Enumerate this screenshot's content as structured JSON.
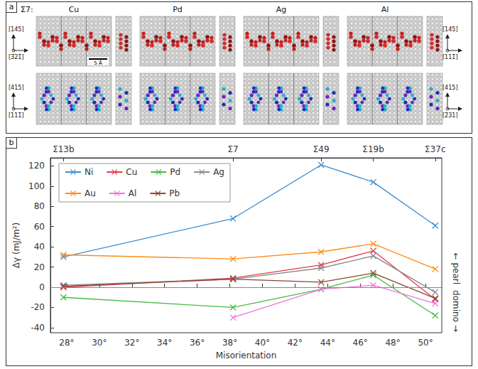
{
  "panel_labels": [
    "a",
    "b"
  ],
  "structures": {
    "title": "Σ7:",
    "elements": [
      "Cu",
      "Pd",
      "Ag",
      "Al"
    ],
    "scale_bar": "5 Å",
    "top_row_axes": {
      "left": {
        "up": "[145]",
        "right": "[3̄21̄]"
      },
      "right": {
        "up": "[145]",
        "right": "[111̄]"
      }
    },
    "bottom_row_axes": {
      "left": {
        "up": "[415]",
        "right": "[111̄]"
      },
      "right": {
        "up": "[415]",
        "right": "[2̄31]"
      }
    }
  },
  "chart_data": {
    "type": "line",
    "x_label": "Misorientation",
    "y_label": "Δγ (mJ/m²)",
    "x": [
      27.8,
      38.2,
      43.6,
      46.8,
      50.6
    ],
    "series": [
      {
        "name": "Ni",
        "color": "#3c8dd0",
        "values": [
          30,
          68,
          121,
          104,
          61
        ]
      },
      {
        "name": "Cu",
        "color": "#e03c4c",
        "values": [
          0,
          9,
          22,
          36,
          -12
        ]
      },
      {
        "name": "Pd",
        "color": "#44bb44",
        "values": [
          -10,
          -20,
          -2,
          12,
          -28
        ]
      },
      {
        "name": "Ag",
        "color": "#8a8a8a",
        "values": [
          2,
          8,
          19,
          31,
          -5
        ]
      },
      {
        "name": "Au",
        "color": "#ff8c1a",
        "values": [
          32,
          28,
          35,
          43,
          18
        ]
      },
      {
        "name": "Al",
        "color": "#ee77dd",
        "values": [
          null,
          -30,
          -2,
          2,
          -16
        ]
      },
      {
        "name": "Pb",
        "color": "#8b4536",
        "values": [
          1,
          8,
          5,
          14,
          -11
        ]
      }
    ],
    "xlim": [
      27,
      51
    ],
    "ylim": [
      -45,
      128
    ],
    "xticks": [
      {
        "value": 28,
        "label": "28°"
      },
      {
        "value": 30,
        "label": "30°"
      },
      {
        "value": 32,
        "label": "32°"
      },
      {
        "value": 34,
        "label": "34°"
      },
      {
        "value": 36,
        "label": "36°"
      },
      {
        "value": 38,
        "label": "38°"
      },
      {
        "value": 40,
        "label": "40°"
      },
      {
        "value": 42,
        "label": "42°"
      },
      {
        "value": 44,
        "label": "44°"
      },
      {
        "value": 46,
        "label": "46°"
      },
      {
        "value": 48,
        "label": "48°"
      },
      {
        "value": 50,
        "label": "50°"
      }
    ],
    "x2ticks": [
      {
        "value": 27.8,
        "label": "Σ13b"
      },
      {
        "value": 38.2,
        "label": "Σ7"
      },
      {
        "value": 43.6,
        "label": "Σ49"
      },
      {
        "value": 46.8,
        "label": "Σ19b"
      },
      {
        "value": 50.6,
        "label": "Σ37c"
      }
    ],
    "yticks": [
      -40,
      -20,
      0,
      20,
      40,
      60,
      80,
      100,
      120
    ],
    "annotations": [
      {
        "y": 0,
        "label_above": "← pearl",
        "label_below": "domino →"
      }
    ],
    "marker": "x",
    "legend": "upper left",
    "grid": false
  }
}
